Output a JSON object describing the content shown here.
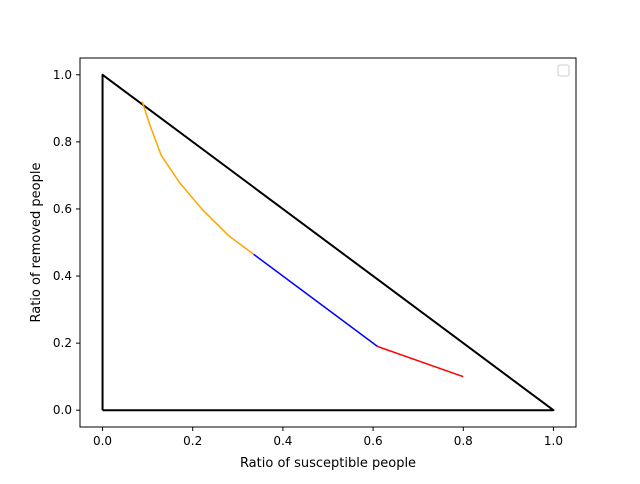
{
  "chart_data": {
    "type": "line",
    "title": "",
    "xlabel": "Ratio of susceptible people",
    "ylabel": "Ratio of removed people",
    "xlim": [
      -0.05,
      1.05
    ],
    "ylim": [
      -0.05,
      1.05
    ],
    "xticks": [
      0.0,
      0.2,
      0.4,
      0.6,
      0.8,
      1.0
    ],
    "xtick_labels": [
      "0.0",
      "0.2",
      "0.4",
      "0.6",
      "0.8",
      "1.0"
    ],
    "yticks": [
      0.0,
      0.2,
      0.4,
      0.6,
      0.8,
      1.0
    ],
    "ytick_labels": [
      "0.0",
      "0.2",
      "0.4",
      "0.6",
      "0.8",
      "1.0"
    ],
    "grid": false,
    "legend": {
      "placement": "top-right",
      "entries": []
    },
    "series": [
      {
        "color": "#000000",
        "x": [
          0.0,
          0.0,
          1.0,
          0.0
        ],
        "y": [
          0.0,
          1.0,
          0.0,
          0.0
        ]
      },
      {
        "color": "#ff0000",
        "x": [
          0.8,
          0.61
        ],
        "y": [
          0.1,
          0.19
        ]
      },
      {
        "color": "#0000ff",
        "x": [
          0.61,
          0.335
        ],
        "y": [
          0.19,
          0.465
        ]
      },
      {
        "color": "#ffa500",
        "x": [
          0.335,
          0.28,
          0.22,
          0.17,
          0.13,
          0.105,
          0.088
        ],
        "y": [
          0.465,
          0.52,
          0.6,
          0.68,
          0.76,
          0.85,
          0.92
        ]
      }
    ]
  }
}
